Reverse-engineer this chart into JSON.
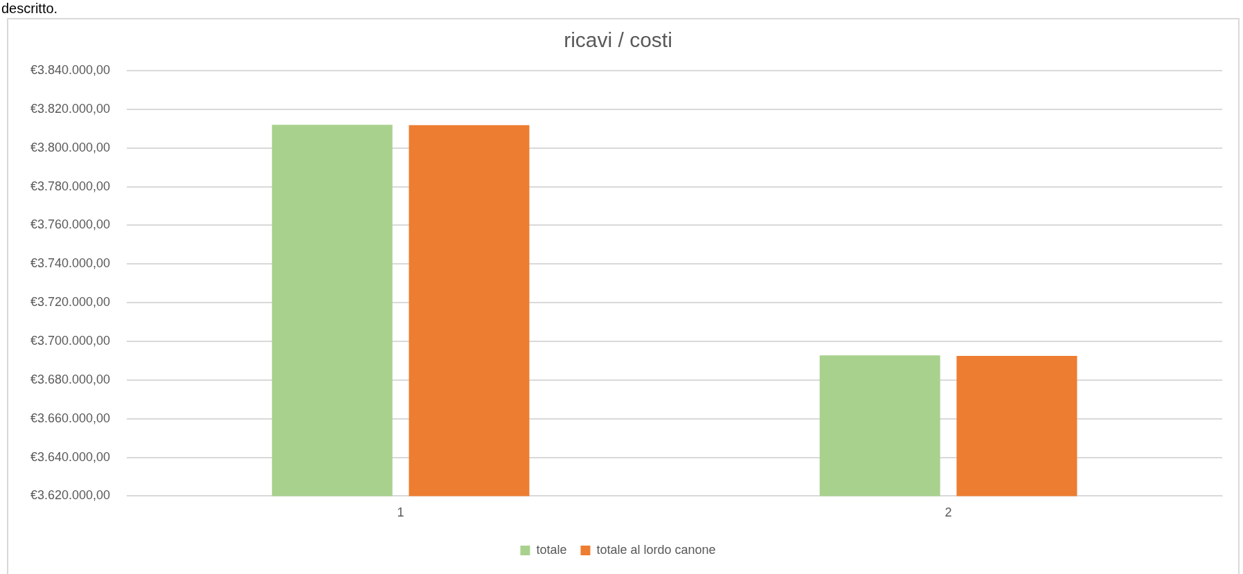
{
  "chart_data": {
    "type": "bar",
    "title": "ricavi / costi",
    "annotations": [
      "descritto."
    ],
    "categories": [
      "1",
      "2"
    ],
    "series": [
      {
        "name": "totale",
        "color": "#a9d18e",
        "values": [
          3812000,
          3692700
        ]
      },
      {
        "name": "totale al lordo canone",
        "color": "#ed7d31",
        "values": [
          3811800,
          3692500
        ]
      }
    ],
    "ylim": [
      3620000,
      3840000
    ],
    "yticks": [
      {
        "value": 3620000,
        "label": "€3.620.000,00"
      },
      {
        "value": 3640000,
        "label": "€3.640.000,00"
      },
      {
        "value": 3660000,
        "label": "€3.660.000,00"
      },
      {
        "value": 3680000,
        "label": "€3.680.000,00"
      },
      {
        "value": 3700000,
        "label": "€3.700.000,00"
      },
      {
        "value": 3720000,
        "label": "€3.720.000,00"
      },
      {
        "value": 3740000,
        "label": "€3.740.000,00"
      },
      {
        "value": 3760000,
        "label": "€3.760.000,00"
      },
      {
        "value": 3780000,
        "label": "€3.780.000,00"
      },
      {
        "value": 3800000,
        "label": "€3.800.000,00"
      },
      {
        "value": 3820000,
        "label": "€3.820.000,00"
      },
      {
        "value": 3840000,
        "label": "€3.840.000,00"
      }
    ],
    "grid": "y",
    "legend": "bottom"
  }
}
